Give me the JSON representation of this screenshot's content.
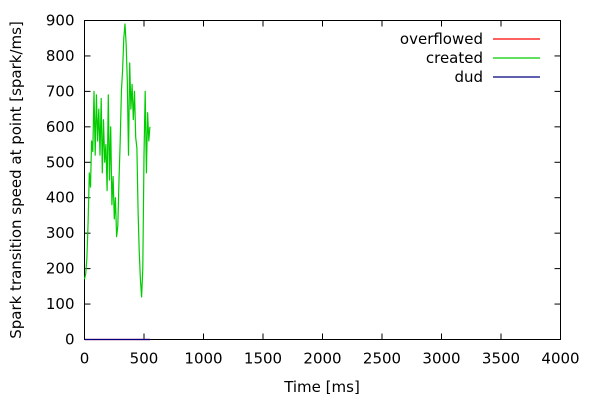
{
  "chart_data": {
    "type": "line",
    "title": "",
    "xlabel": "Time [ms]",
    "ylabel": "Spark transition speed at point [spark/ms]",
    "xlim": [
      0,
      4000
    ],
    "ylim": [
      0,
      900
    ],
    "xticks": [
      0,
      500,
      1000,
      1500,
      2000,
      2500,
      3000,
      3500,
      4000
    ],
    "yticks": [
      0,
      100,
      200,
      300,
      400,
      500,
      600,
      700,
      800,
      900
    ],
    "grid": false,
    "legend_position": "top-right",
    "series": [
      {
        "name": "overflowed",
        "color": "#ff0000",
        "x": [
          0,
          550
        ],
        "y": [
          0,
          0
        ]
      },
      {
        "name": "created",
        "color": "#00cc00",
        "x": [
          0,
          10,
          20,
          30,
          40,
          50,
          60,
          70,
          80,
          90,
          100,
          110,
          120,
          130,
          140,
          150,
          160,
          170,
          180,
          190,
          200,
          210,
          220,
          230,
          240,
          250,
          260,
          270,
          280,
          290,
          300,
          310,
          320,
          330,
          340,
          350,
          360,
          370,
          380,
          390,
          400,
          410,
          420,
          430,
          440,
          450,
          460,
          470,
          480,
          490,
          500,
          510,
          520,
          530,
          540,
          550
        ],
        "y": [
          170,
          185,
          230,
          330,
          470,
          430,
          560,
          530,
          700,
          520,
          690,
          560,
          650,
          520,
          680,
          470,
          620,
          500,
          550,
          420,
          690,
          450,
          600,
          380,
          460,
          340,
          400,
          290,
          320,
          450,
          560,
          700,
          760,
          850,
          890,
          830,
          730,
          520,
          780,
          650,
          720,
          620,
          700,
          570,
          540,
          360,
          250,
          170,
          120,
          200,
          520,
          700,
          470,
          640,
          560,
          600
        ]
      },
      {
        "name": "dud",
        "color": "#000080",
        "x": [
          0,
          550
        ],
        "y": [
          0,
          0
        ]
      }
    ]
  }
}
